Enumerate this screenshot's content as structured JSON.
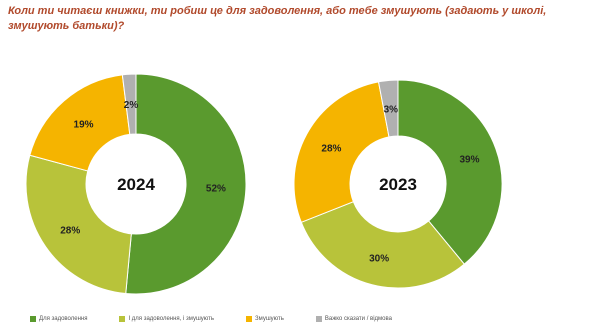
{
  "header": {
    "question": "Коли ти читаєш книжки, ти робиш це для задоволення, або тебе змушують (задають у школі, змушують батьки)?"
  },
  "colors": {
    "pleasure": "#5a9a2e",
    "pleasure_and_forced": "#b8c33a",
    "forced": "#f5b400",
    "hard_to_say": "#b0b0b0"
  },
  "legend": [
    {
      "label": "Для задоволення",
      "color_key": "pleasure"
    },
    {
      "label": "І для задоволення, і змушують",
      "color_key": "pleasure_and_forced"
    },
    {
      "label": "Змушують",
      "color_key": "forced"
    },
    {
      "label": "Важко сказати / відмова",
      "color_key": "hard_to_say"
    }
  ],
  "chart_data": [
    {
      "type": "pie",
      "title": "2024",
      "donut": true,
      "categories": [
        "Для задоволення",
        "І для задоволення, і змушують",
        "Змушують",
        "Важко сказати / відмова"
      ],
      "values": [
        52,
        28,
        19,
        2
      ],
      "labels": [
        "52%",
        "28%",
        "19%",
        "2%"
      ]
    },
    {
      "type": "pie",
      "title": "2023",
      "donut": true,
      "categories": [
        "Для задоволення",
        "І для задоволення, і змушують",
        "Змушують",
        "Важко сказати / відмова"
      ],
      "values": [
        39,
        30,
        28,
        3
      ],
      "labels": [
        "39%",
        "30%",
        "28%",
        "3%"
      ]
    }
  ]
}
